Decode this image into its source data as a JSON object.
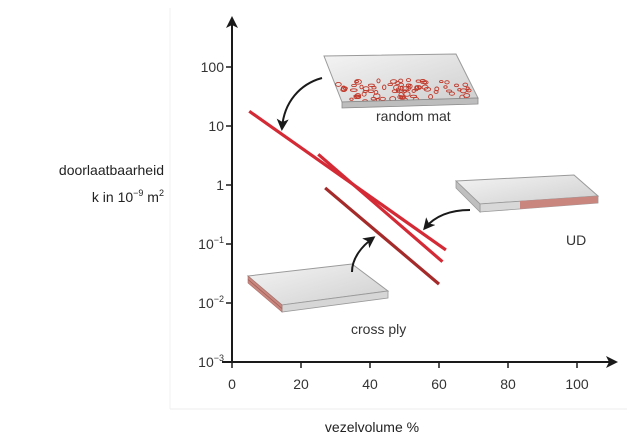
{
  "chart_data": {
    "type": "line",
    "xlabel": "vezelvolume %",
    "ylabel_line1": "doorlaatbaarheid",
    "ylabel_line2_base": "k in 10",
    "ylabel_line2_exp": "−9",
    "ylabel_line2_unit": " m",
    "ylabel_line2_unit_exp": "2",
    "xlim": [
      0,
      110
    ],
    "ylim_log10": [
      -3,
      2.8
    ],
    "y_scale": "log",
    "grid": false,
    "x_ticks": [
      {
        "value": 0,
        "label": "0"
      },
      {
        "value": 20,
        "label": "20"
      },
      {
        "value": 40,
        "label": "40"
      },
      {
        "value": 60,
        "label": "60"
      },
      {
        "value": 80,
        "label": "80"
      },
      {
        "value": 100,
        "label": "100"
      }
    ],
    "y_ticks": [
      {
        "log": 2,
        "base": "100",
        "exp": ""
      },
      {
        "log": 1,
        "base": "10",
        "exp": ""
      },
      {
        "log": 0,
        "base": "1",
        "exp": ""
      },
      {
        "log": -1,
        "base": "10",
        "exp": "−1"
      },
      {
        "log": -2,
        "base": "10",
        "exp": "−2"
      },
      {
        "log": -3,
        "base": "10",
        "exp": "−3"
      }
    ],
    "series": [
      {
        "label": "random mat",
        "color": "#d42a36",
        "x": [
          5,
          62
        ],
        "y_log10": [
          1.25,
          -1.1
        ]
      },
      {
        "label": "UD",
        "color": "#d42a36",
        "x": [
          25,
          61
        ],
        "y_log10": [
          0.52,
          -1.3
        ]
      },
      {
        "label": "cross ply",
        "color": "#a52a2a",
        "x": [
          27,
          60
        ],
        "y_log10": [
          -0.05,
          -1.68
        ]
      }
    ],
    "annotations": [
      {
        "text": "random mat",
        "target_x": 15,
        "target_log10": 0.85
      },
      {
        "text": "UD",
        "target_x": 53,
        "target_log10": -0.75
      },
      {
        "text": "cross ply",
        "target_x": 40,
        "target_log10": -0.9
      }
    ]
  },
  "colors": {
    "line_red": "#d42a36",
    "line_darkred": "#a52a2a",
    "axis": "#1a1a1a",
    "panel_top": "#e2e2e2",
    "panel_edge": "#c9867f",
    "fiber_dots": "#c0392b"
  }
}
